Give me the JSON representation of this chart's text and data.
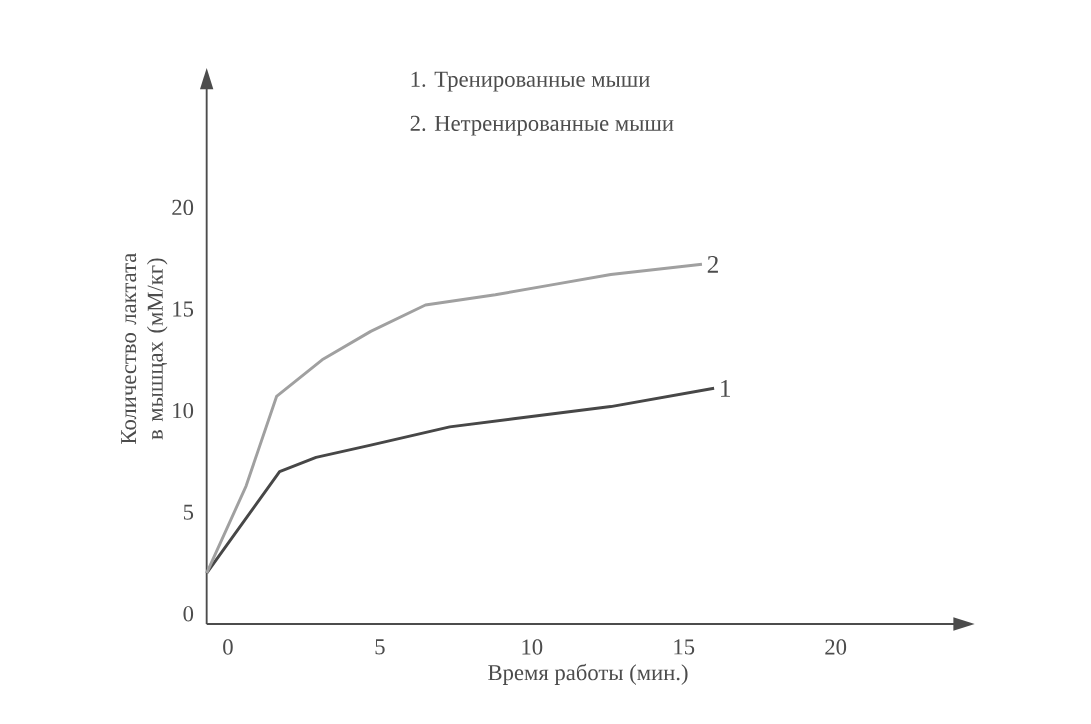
{
  "chart_data": {
    "type": "line",
    "xlabel": "Время работы (мин.)",
    "ylabel": "Количество лактата в мышцах (мМ/кг)",
    "annotations": [
      "1. Тренированные мыши",
      "2. Нетренированные мыши"
    ],
    "series": [
      {
        "name": "1",
        "color": "#474747",
        "x": [
          -0.7,
          1.7,
          2.9,
          4.7,
          7.3,
          9.4,
          12.6,
          16.0
        ],
        "values": [
          2.0,
          7.0,
          7.7,
          8.3,
          9.2,
          9.6,
          10.2,
          11.1
        ]
      },
      {
        "name": "2",
        "color": "#a0a0a0",
        "x": [
          -0.7,
          0.6,
          1.6,
          3.1,
          4.7,
          6.5,
          8.8,
          10.7,
          12.6,
          15.6
        ],
        "values": [
          2.0,
          6.3,
          10.7,
          12.5,
          13.9,
          15.2,
          15.7,
          16.2,
          16.7,
          17.2
        ]
      }
    ],
    "xlim": [
      -0.7,
      24.4
    ],
    "ylim": [
      -0.5,
      26.6
    ],
    "xticks": [
      0,
      5,
      10,
      15,
      20
    ],
    "yticks": [
      0,
      5,
      10,
      15,
      20
    ],
    "marker": "none",
    "grid": false
  }
}
